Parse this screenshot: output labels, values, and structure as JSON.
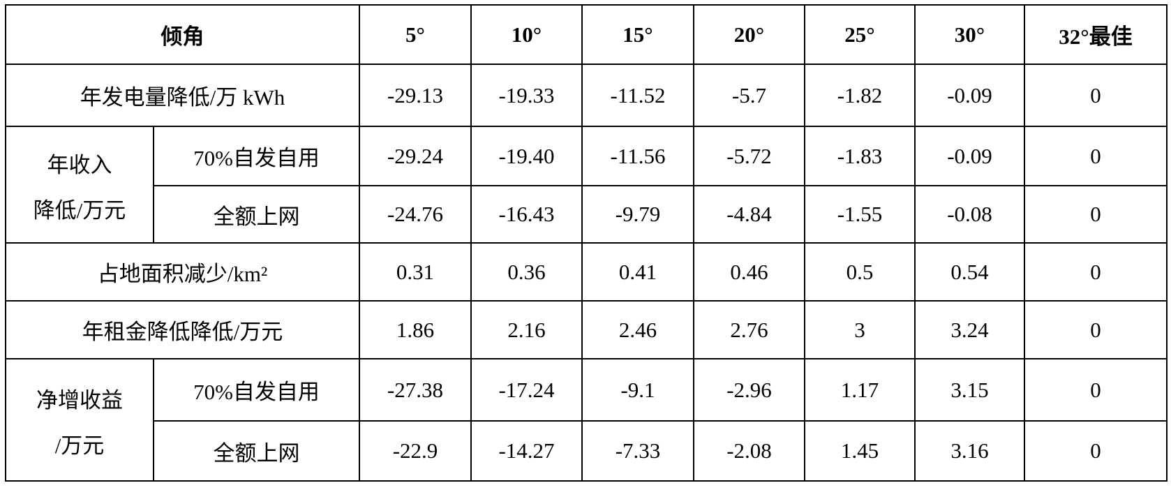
{
  "header": {
    "label": "倾角",
    "angles": [
      "5°",
      "10°",
      "15°",
      "20°",
      "25°",
      "30°",
      "32°最佳"
    ]
  },
  "rows": [
    {
      "label": "年发电量降低/万 kWh",
      "values": [
        "-29.13",
        "-19.33",
        "-11.52",
        "-5.7",
        "-1.82",
        "-0.09",
        "0"
      ]
    },
    {
      "group_line1": "年收入",
      "group_line2": "降低/万元",
      "sub": [
        {
          "label": "70%自发自用",
          "values": [
            "-29.24",
            "-19.40",
            "-11.56",
            "-5.72",
            "-1.83",
            "-0.09",
            "0"
          ]
        },
        {
          "label": "全额上网",
          "values": [
            "-24.76",
            "-16.43",
            "-9.79",
            "-4.84",
            "-1.55",
            "-0.08",
            "0"
          ]
        }
      ]
    },
    {
      "label": "占地面积减少/km²",
      "values": [
        "0.31",
        "0.36",
        "0.41",
        "0.46",
        "0.5",
        "0.54",
        "0"
      ]
    },
    {
      "label": "年租金降低降低/万元",
      "values": [
        "1.86",
        "2.16",
        "2.46",
        "2.76",
        "3",
        "3.24",
        "0"
      ]
    },
    {
      "group_line1": "净增收益",
      "group_line2": "/万元",
      "sub": [
        {
          "label": "70%自发自用",
          "values": [
            "-27.38",
            "-17.24",
            "-9.1",
            "-2.96",
            "1.17",
            "3.15",
            "0"
          ]
        },
        {
          "label": "全额上网",
          "values": [
            "-22.9",
            "-14.27",
            "-7.33",
            "-2.08",
            "1.45",
            "3.16",
            "0"
          ]
        }
      ]
    }
  ]
}
